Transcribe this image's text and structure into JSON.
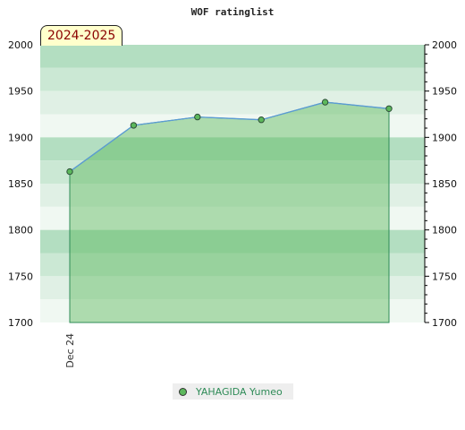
{
  "chart_data": {
    "type": "area",
    "title": "WOF ratinglist",
    "season_label": "2024-2025",
    "xlabel": "",
    "ylabel": "",
    "x_tick_labels": [
      "Dec 24"
    ],
    "ylim": [
      1700,
      2000
    ],
    "y_ticks": [
      "1700",
      "1750",
      "1800",
      "1850",
      "1900",
      "1950",
      "2000"
    ],
    "grid": false,
    "legend_position": "bottom",
    "colors": {
      "fill": "#5cb85c",
      "line": "#5b9bd5",
      "marker": "#5cb85c",
      "legend_text": "#2e8b57"
    },
    "series": [
      {
        "name": "YAHAGIDA Yumeo",
        "x": [
          "Dec 24",
          "",
          "",
          "",
          "",
          ""
        ],
        "values": [
          1863,
          1913,
          1922,
          1919,
          1938,
          1931
        ]
      }
    ]
  }
}
